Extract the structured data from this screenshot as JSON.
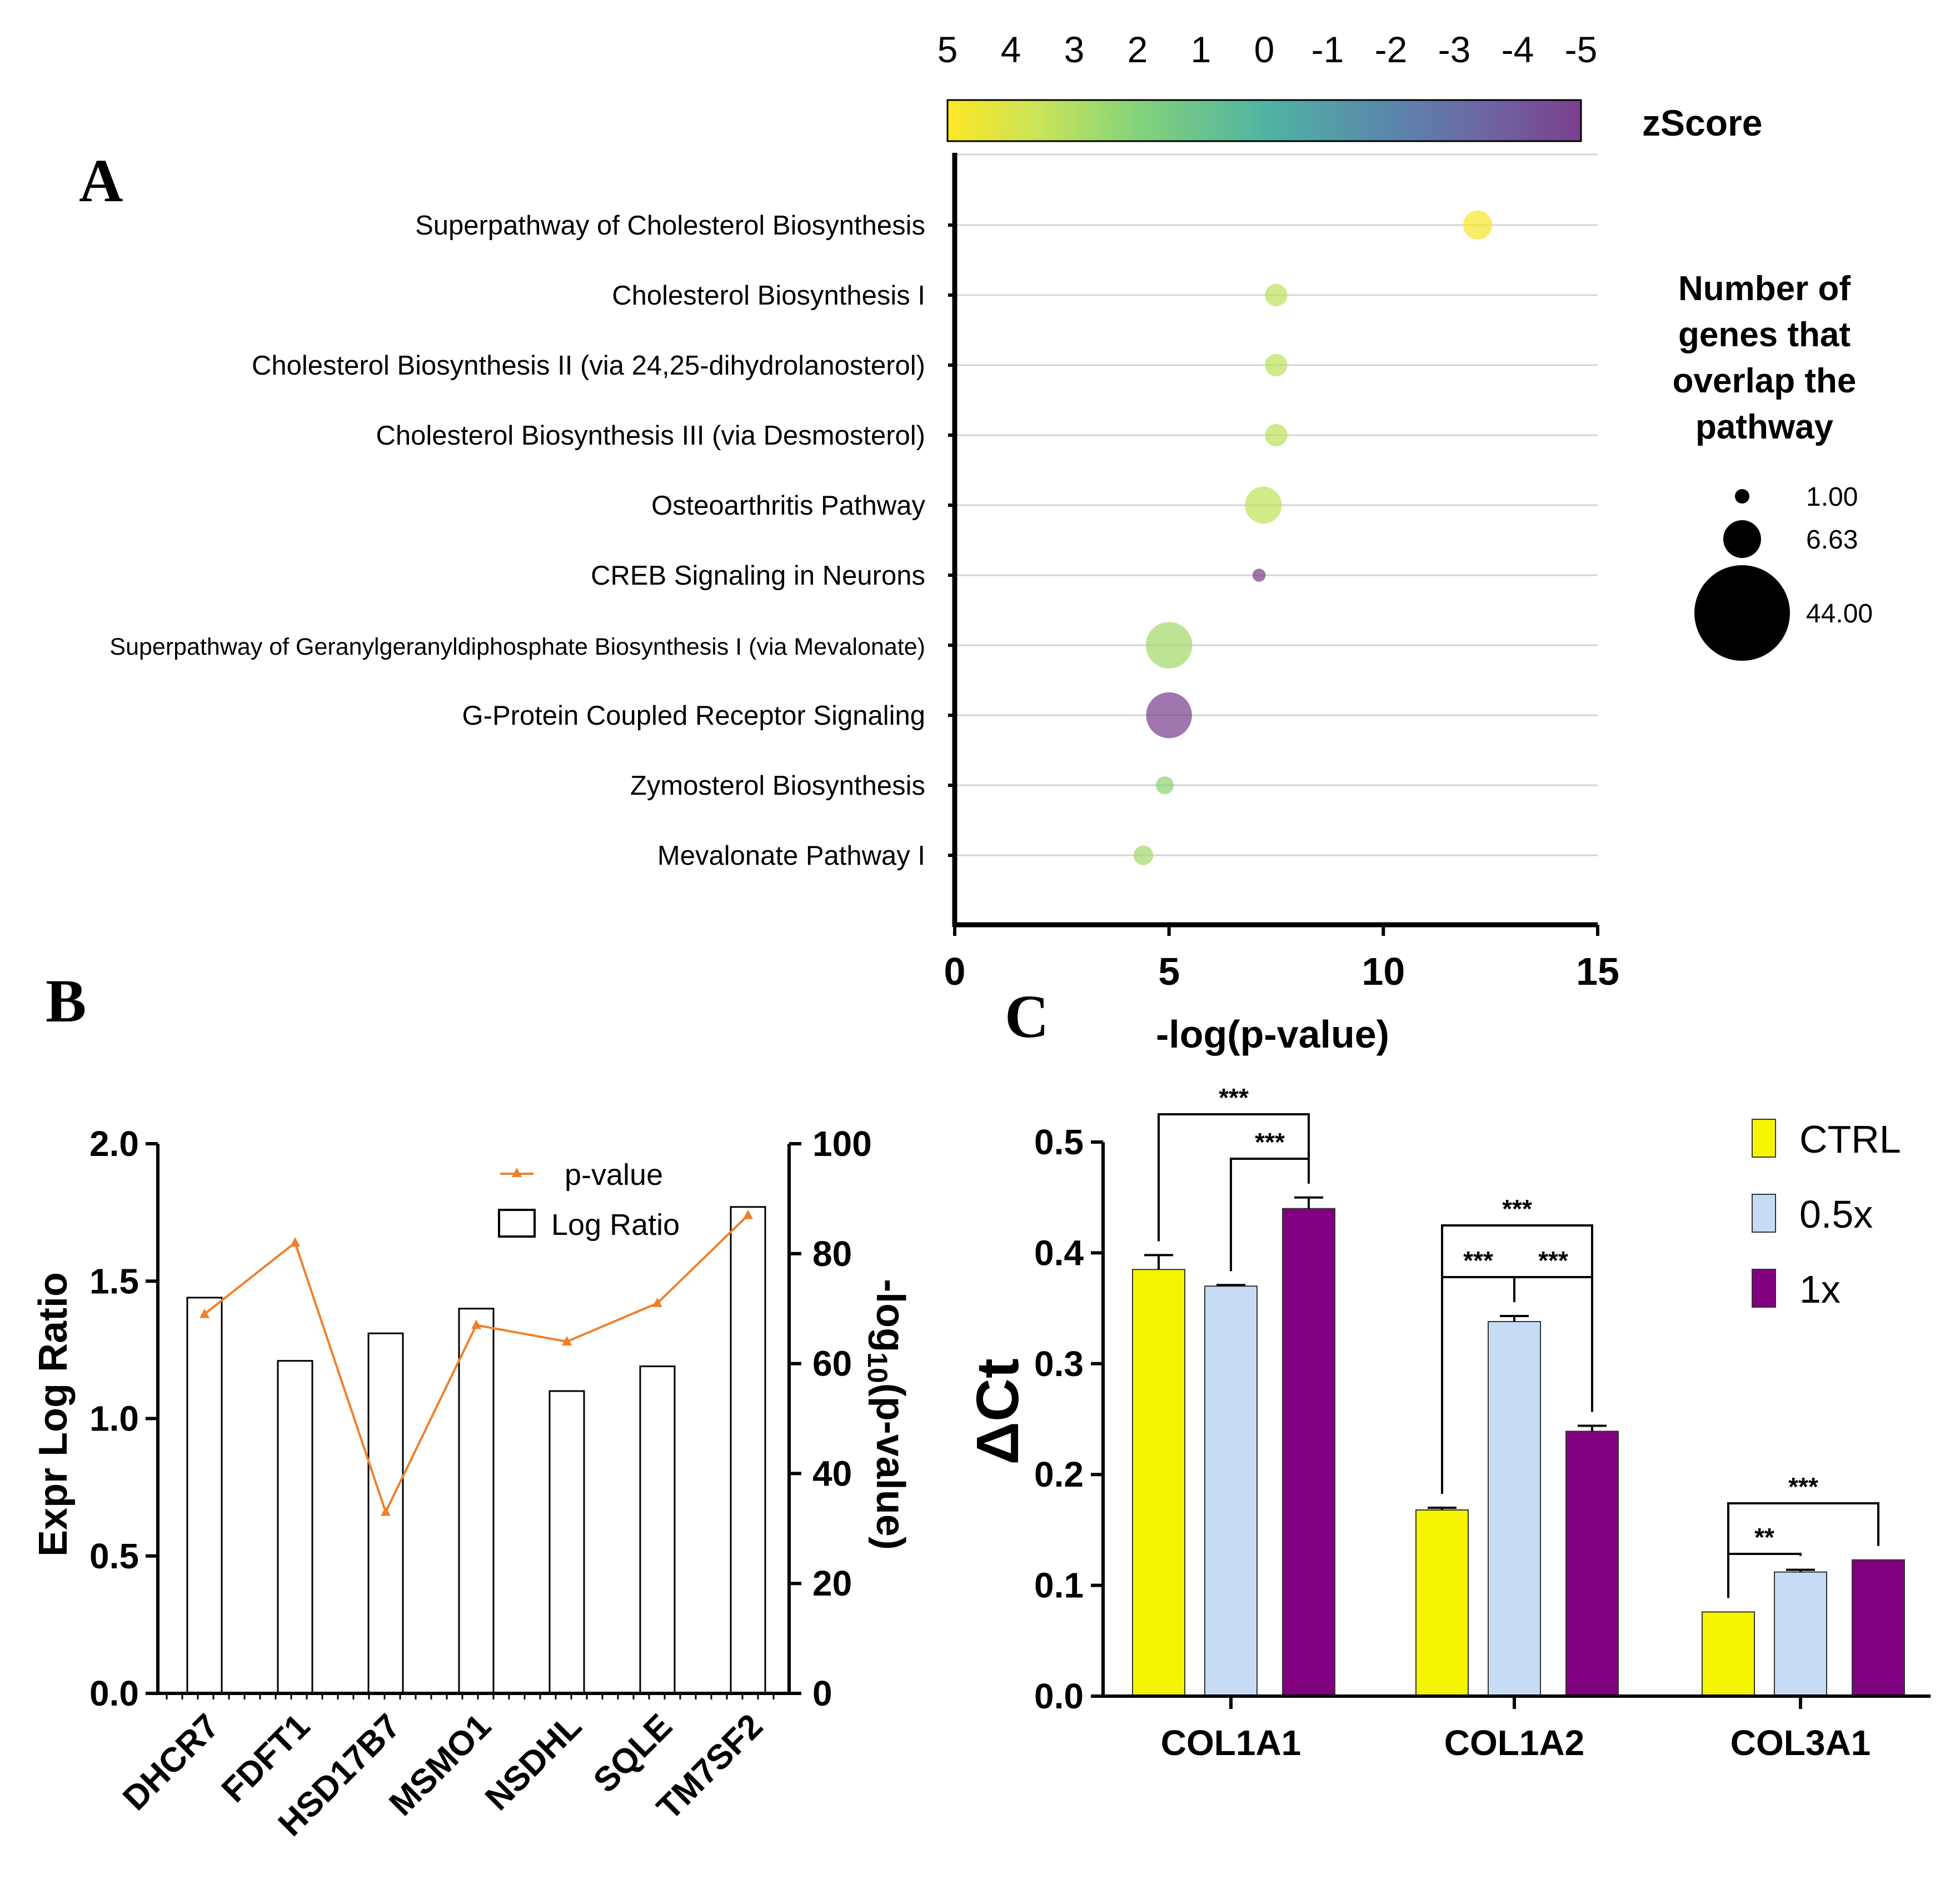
{
  "panels": {
    "a": "A",
    "b": "B",
    "c": "C"
  },
  "colors": {
    "ctrl": "#f5f500",
    "half": "#c6dcf5",
    "one": "#800080",
    "line": "#f07f2a",
    "grid": "#d4d4d4",
    "axis": "#000000"
  },
  "chart_data": [
    {
      "id": "panel-a",
      "type": "scatter",
      "subtype": "bubble",
      "xlabel": "-log(p-value)",
      "xlim": [
        0,
        15
      ],
      "xticks": [
        0,
        5,
        10,
        15
      ],
      "colorbar": {
        "title": "zScore",
        "ticks": [
          "5",
          "4",
          "3",
          "2",
          "1",
          "0",
          "-1",
          "-2",
          "-3",
          "-4",
          "-5"
        ],
        "range": [
          5,
          -5
        ]
      },
      "size_legend": {
        "title": [
          "Number of",
          "genes that",
          "overlap the",
          "pathway"
        ],
        "entries": [
          {
            "label": "1.00",
            "value": 1
          },
          {
            "label": "6.63",
            "value": 6.63
          },
          {
            "label": "44.00",
            "value": 44
          }
        ]
      },
      "points": [
        {
          "pathway": "Superpathway of Cholesterol Biosynthesis",
          "x": 12.2,
          "zscore": 4.8,
          "genes": 12
        },
        {
          "pathway": "Cholesterol Biosynthesis I",
          "x": 7.5,
          "zscore": 3.3,
          "genes": 6
        },
        {
          "pathway": "Cholesterol Biosynthesis II (via 24,25-dihydrolanosterol)",
          "x": 7.5,
          "zscore": 3.3,
          "genes": 6
        },
        {
          "pathway": "Cholesterol Biosynthesis III (via Desmosterol)",
          "x": 7.5,
          "zscore": 3.3,
          "genes": 6
        },
        {
          "pathway": "Osteoarthritis Pathway",
          "x": 7.2,
          "zscore": 3.4,
          "genes": 22
        },
        {
          "pathway": "CREB Signaling in Neurons",
          "x": 7.1,
          "zscore": -5,
          "genes": 1
        },
        {
          "pathway": "Superpathway of Geranylgeranyldiphosphate Biosynthesis I (via Mevalonate)",
          "x": 5.0,
          "zscore": 2.7,
          "genes": 38
        },
        {
          "pathway": "G-Protein Coupled Receptor Signaling",
          "x": 5.0,
          "zscore": -4.9,
          "genes": 37
        },
        {
          "pathway": "Zymosterol Biosynthesis",
          "x": 4.9,
          "zscore": 2.2,
          "genes": 3
        },
        {
          "pathway": "Mevalonate Pathway I",
          "x": 4.4,
          "zscore": 2.7,
          "genes": 4
        }
      ]
    },
    {
      "id": "panel-b",
      "type": "bar",
      "combo": "bar+line",
      "categories": [
        "DHCR7",
        "FDFT1",
        "HSD17B7",
        "MSMO1",
        "NSDHL",
        "SQLE",
        "TM7SF2"
      ],
      "ylabel": "Expr Log Ratio",
      "ylim": [
        0,
        2.0
      ],
      "yticks": [
        "0.0",
        "0.5",
        "1.0",
        "1.5",
        "2.0"
      ],
      "y2label": "-log10(p-value)",
      "y2label_parts": {
        "pre": "-log",
        "sub": "10",
        "post": "(p-value)"
      },
      "y2lim": [
        0,
        100
      ],
      "y2ticks": [
        "0",
        "20",
        "40",
        "60",
        "80",
        "100"
      ],
      "legend": {
        "line": "p-value",
        "bar": "Log Ratio"
      },
      "series": [
        {
          "name": "Log Ratio",
          "kind": "bar",
          "axis": "left",
          "values": [
            1.44,
            1.21,
            1.31,
            1.4,
            1.1,
            1.19,
            1.77
          ]
        },
        {
          "name": "p-value",
          "kind": "line",
          "axis": "right",
          "values": [
            69,
            82,
            33,
            67,
            64,
            71,
            87
          ]
        }
      ]
    },
    {
      "id": "panel-c",
      "type": "bar",
      "categories": [
        "COL1A1",
        "COL1A2",
        "COL3A1"
      ],
      "ylabel": "ΔCt",
      "ylim": [
        0,
        0.5
      ],
      "yticks": [
        "0.0",
        "0.1",
        "0.2",
        "0.3",
        "0.4",
        "0.5"
      ],
      "series": [
        {
          "name": "CTRL",
          "values": [
            0.385,
            0.168,
            0.076
          ],
          "errors": [
            0.013,
            0.002,
            0.0
          ]
        },
        {
          "name": "0.5x",
          "values": [
            0.37,
            0.338,
            0.112
          ],
          "errors": [
            0.001,
            0.005,
            0.002
          ]
        },
        {
          "name": "1x",
          "values": [
            0.44,
            0.239,
            0.123
          ],
          "errors": [
            0.01,
            0.005,
            0.0
          ]
        }
      ],
      "significance": [
        {
          "category": 0,
          "from": 0,
          "to": 2,
          "label": "***"
        },
        {
          "category": 0,
          "from": 1,
          "to": 2,
          "label": "***"
        },
        {
          "category": 1,
          "from": 0,
          "to": 2,
          "label": "***"
        },
        {
          "category": 1,
          "from": 0,
          "to": 1,
          "label": "***"
        },
        {
          "category": 1,
          "from": 1,
          "to": 2,
          "label": "***"
        },
        {
          "category": 2,
          "from": 0,
          "to": 2,
          "label": "***"
        },
        {
          "category": 2,
          "from": 0,
          "to": 1,
          "label": "**"
        }
      ]
    }
  ]
}
